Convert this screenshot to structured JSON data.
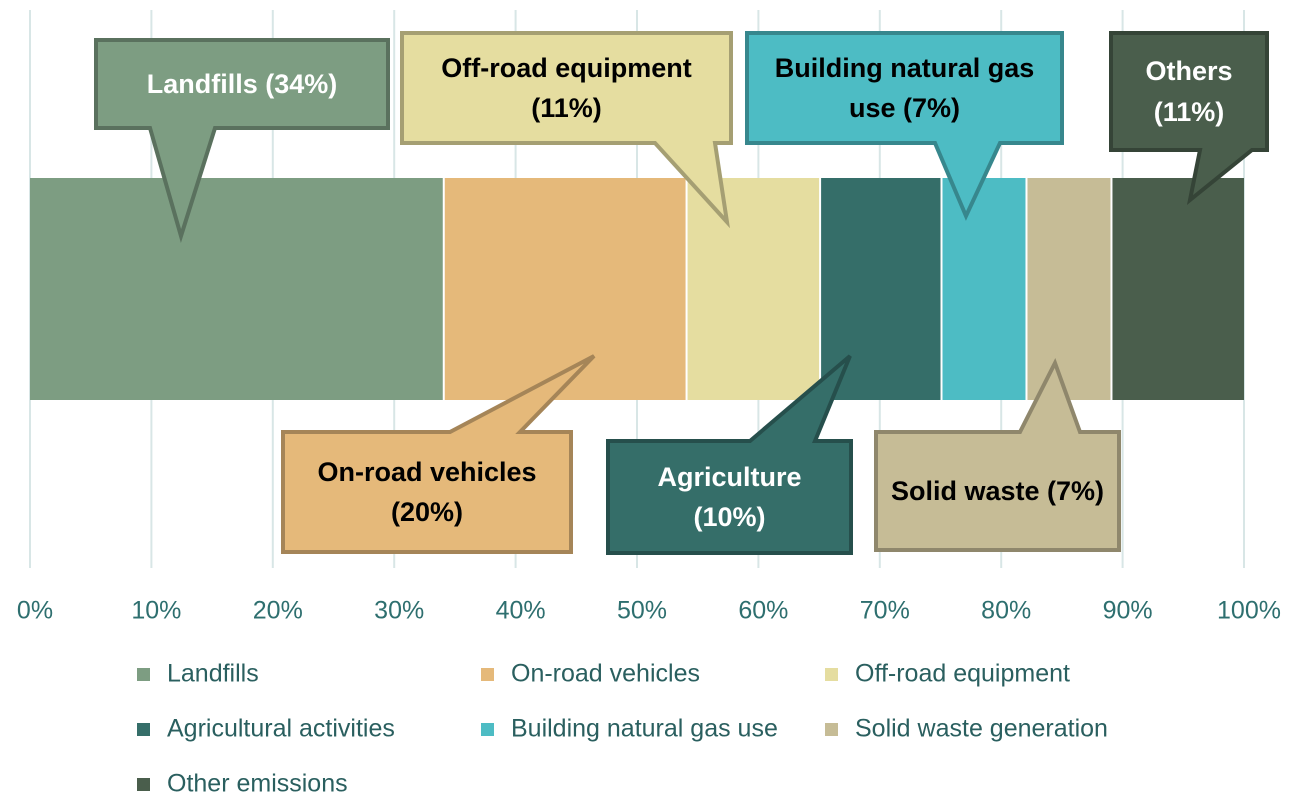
{
  "chart_data": {
    "type": "stacked_bar_100",
    "orientation": "horizontal",
    "series": [
      {
        "name": "Landfills",
        "color": "#7d9d82",
        "values": [
          34
        ],
        "value_labels": [
          "Landfills (34%)"
        ]
      },
      {
        "name": "On-road vehicles",
        "color": "#e5b97a",
        "values": [
          20
        ],
        "value_labels": [
          "On-road vehicles (20%)"
        ]
      },
      {
        "name": "Off-road equipment",
        "color": "#e5dda0",
        "values": [
          11
        ],
        "value_labels": [
          "Off-road equipment (11%)"
        ]
      },
      {
        "name": "Agricultural activities",
        "color": "#356e69",
        "values": [
          10
        ],
        "value_labels": [
          "Agriculture (10%)"
        ]
      },
      {
        "name": "Building natural gas use",
        "color": "#4dbcc4",
        "values": [
          7
        ],
        "value_labels": [
          "Building natural gas use (7%)"
        ]
      },
      {
        "name": "Solid waste generation",
        "color": "#c6bc96",
        "values": [
          7
        ],
        "value_labels": [
          "Solid waste (7%)"
        ]
      },
      {
        "name": "Other emissions",
        "color": "#4a5e4c",
        "values": [
          11
        ],
        "value_labels": [
          "Others (11%)"
        ]
      }
    ],
    "xlim": [
      0,
      100
    ],
    "xticks": [
      {
        "value": 0,
        "label": "0%"
      },
      {
        "value": 10,
        "label": "10%"
      },
      {
        "value": 20,
        "label": "20%"
      },
      {
        "value": 30,
        "label": "30%"
      },
      {
        "value": 40,
        "label": "40%"
      },
      {
        "value": 50,
        "label": "50%"
      },
      {
        "value": 60,
        "label": "60%"
      },
      {
        "value": 70,
        "label": "70%"
      },
      {
        "value": 80,
        "label": "80%"
      },
      {
        "value": 90,
        "label": "90%"
      },
      {
        "value": 100,
        "label": "100%"
      }
    ],
    "grid": true,
    "legend": "bottom"
  }
}
